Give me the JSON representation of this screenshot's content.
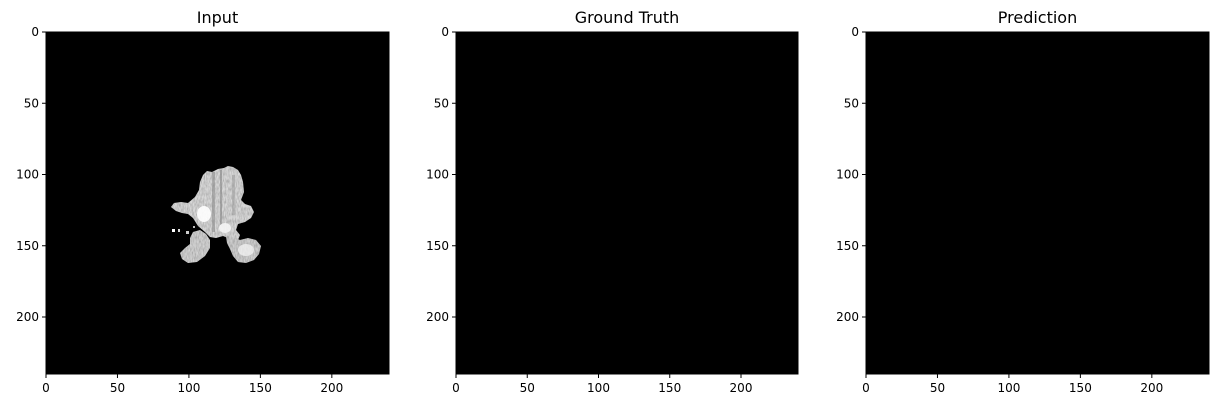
{
  "chart_data": [
    {
      "type": "heatmap",
      "title": "Input",
      "xlim": [
        0,
        240
      ],
      "ylim": [
        240,
        0
      ],
      "xticks": [
        0,
        50,
        100,
        150,
        200
      ],
      "yticks": [
        0,
        50,
        100,
        150,
        200
      ],
      "colormap": "gray",
      "background_color": "#000000",
      "content": "grayscale image with a bright irregular region spanning approximately x 88-152, y 94-163"
    },
    {
      "type": "heatmap",
      "title": "Ground Truth",
      "xlim": [
        0,
        240
      ],
      "ylim": [
        240,
        0
      ],
      "xticks": [
        0,
        50,
        100,
        150,
        200
      ],
      "yticks": [
        0,
        50,
        100,
        150,
        200
      ],
      "colormap": "gray",
      "background_color": "#000000",
      "content": "all black"
    },
    {
      "type": "heatmap",
      "title": "Prediction",
      "xlim": [
        0,
        240
      ],
      "ylim": [
        240,
        0
      ],
      "xticks": [
        0,
        50,
        100,
        150,
        200
      ],
      "yticks": [
        0,
        50,
        100,
        150,
        200
      ],
      "colormap": "gray",
      "background_color": "#000000",
      "content": "all black"
    }
  ]
}
